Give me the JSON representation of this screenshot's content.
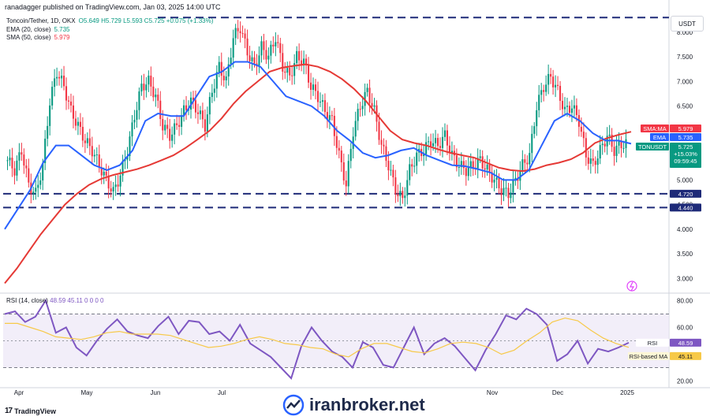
{
  "topbar": {
    "text": "ranadagger published on TradingView.com, Jan 03, 2025 14:00 UTC"
  },
  "legend": {
    "title": "Toncoin/Tether, 1D, OKX",
    "ohlc": "O5.649  H5.729  L5.593  C5.725  +0.075 (+1.33%)",
    "ema_label": "EMA (20, close)",
    "ema_value": "5.735",
    "sma_label": "SMA (50, close)",
    "sma_value": "5.979"
  },
  "rsi_legend": {
    "label": "RSI (14, close)",
    "values": "48.59   45.11   0   0   0   0"
  },
  "unit": "USDT",
  "brand": "TradingView",
  "watermark": "iranbroker.net",
  "colors": {
    "up": "#089981",
    "down": "#f23645",
    "ema": "#2962ff",
    "sma": "#e53935",
    "rsi": "#7e57c2",
    "rsi_ma": "#f7c948",
    "band": "#ede7f6"
  },
  "chart_data": [
    {
      "type": "candlestick",
      "title": "Toncoin/Tether, 1D, OKX",
      "ylim": [
        2.7,
        8.4
      ],
      "price_ticks": [
        "8.000",
        "7.500",
        "7.000",
        "6.500",
        "5.500",
        "5.000",
        "4.500",
        "4.000",
        "3.500",
        "3.000"
      ],
      "x_ticks": [
        "Apr",
        "May",
        "Jun",
        "Jul",
        "Nov",
        "Dec",
        "2025"
      ],
      "close_series": [
        5.4,
        5.2,
        5.6,
        4.9,
        4.72,
        5.3,
        6.6,
        7.2,
        6.9,
        6.4,
        6.1,
        5.8,
        5.6,
        5.3,
        5.0,
        4.75,
        5.1,
        5.6,
        6.3,
        6.9,
        7.0,
        6.7,
        6.1,
        5.9,
        6.1,
        6.4,
        6.6,
        6.4,
        6.1,
        6.8,
        7.3,
        7.0,
        7.9,
        8.1,
        7.6,
        7.3,
        7.7,
        7.5,
        7.9,
        7.3,
        7.1,
        7.5,
        7.4,
        6.9,
        6.7,
        6.4,
        6.2,
        5.5,
        4.9,
        6.0,
        6.5,
        6.8,
        6.4,
        5.7,
        5.3,
        4.8,
        4.6,
        5.2,
        5.5,
        5.6,
        5.8,
        5.7,
        5.9,
        5.5,
        5.3,
        5.2,
        5.3,
        5.4,
        5.2,
        5.0,
        4.8,
        4.72,
        5.0,
        5.3,
        5.5,
        6.5,
        6.9,
        7.1,
        6.8,
        6.4,
        6.5,
        6.2,
        5.5,
        5.3,
        5.6,
        5.9,
        5.6,
        5.725
      ],
      "sma_values": [
        2.9,
        3.2,
        3.55,
        3.9,
        4.2,
        4.5,
        4.72,
        4.9,
        5.02,
        5.1,
        5.16,
        5.22,
        5.3,
        5.4,
        5.5,
        5.65,
        5.82,
        6.0,
        6.25,
        6.55,
        6.8,
        7.0,
        7.2,
        7.28,
        7.32,
        7.35,
        7.3,
        7.2,
        7.05,
        6.85,
        6.6,
        6.3,
        6.0,
        5.82,
        5.75,
        5.7,
        5.62,
        5.55,
        5.5,
        5.45,
        5.35,
        5.25,
        5.2,
        5.18,
        5.22,
        5.3,
        5.35,
        5.42,
        5.55,
        5.75,
        5.85,
        5.92,
        5.979
      ],
      "ema_values": [
        4.0,
        4.4,
        4.8,
        5.35,
        5.7,
        5.7,
        5.5,
        5.3,
        5.2,
        5.3,
        5.6,
        6.2,
        6.35,
        6.3,
        6.3,
        6.7,
        7.1,
        7.2,
        7.4,
        7.4,
        7.3,
        7.0,
        6.7,
        6.6,
        6.5,
        6.3,
        6.0,
        5.8,
        5.55,
        5.45,
        5.5,
        5.6,
        5.65,
        5.5,
        5.4,
        5.3,
        5.28,
        5.22,
        5.15,
        5.0,
        5.0,
        5.2,
        5.7,
        6.2,
        6.35,
        6.2,
        5.95,
        5.8,
        5.8,
        5.735
      ],
      "horizontal_levels": [
        "8.300",
        "4.720",
        "4.440"
      ],
      "price_labels": [
        {
          "name": "SMA:MA",
          "value": "5.979"
        },
        {
          "name": "EMA",
          "value": "5.735"
        },
        {
          "name": "TONUSDT",
          "value": "5.725"
        },
        {
          "name": "",
          "value": "+15.03%"
        },
        {
          "name": "",
          "value": "09:59:45"
        },
        {
          "name": "",
          "value": "4.720"
        },
        {
          "name": "",
          "value": "4.440"
        }
      ]
    },
    {
      "type": "line",
      "title": "RSI (14, close)",
      "ylim": [
        15,
        85
      ],
      "rsi_ticks": [
        "80.00",
        "60.00",
        "20.00"
      ],
      "band": [
        30,
        70
      ],
      "series": [
        {
          "name": "RSI",
          "last": "48.59",
          "values": [
            70,
            72,
            64,
            68,
            80,
            56,
            60,
            45,
            39,
            50,
            59,
            66,
            57,
            54,
            52,
            61,
            68,
            55,
            65,
            64,
            55,
            57,
            50,
            62,
            48,
            43,
            38,
            30,
            22,
            46,
            60,
            50,
            42,
            38,
            30,
            49,
            45,
            32,
            30,
            45,
            60,
            40,
            48,
            52,
            46,
            37,
            28,
            43,
            55,
            69,
            66,
            74,
            70,
            62,
            35,
            40,
            50,
            33,
            44,
            42,
            45,
            48.59
          ]
        },
        {
          "name": "RSI-based MA",
          "last": "45.11",
          "values": [
            63,
            63,
            60,
            57,
            53,
            52,
            51,
            53,
            56,
            57,
            55,
            55,
            55,
            54,
            51,
            48,
            45,
            46,
            48,
            51,
            53,
            51,
            48,
            47,
            45,
            44,
            40,
            38,
            44,
            48,
            48,
            45,
            42,
            41,
            44,
            48,
            49,
            48,
            45,
            40,
            43,
            50,
            56,
            64,
            67,
            65,
            58,
            52,
            48,
            45.11
          ]
        }
      ],
      "price_labels": [
        {
          "name": "RSI",
          "value": "48.59"
        },
        {
          "name": "RSI-based MA",
          "value": "45.11"
        }
      ]
    }
  ]
}
